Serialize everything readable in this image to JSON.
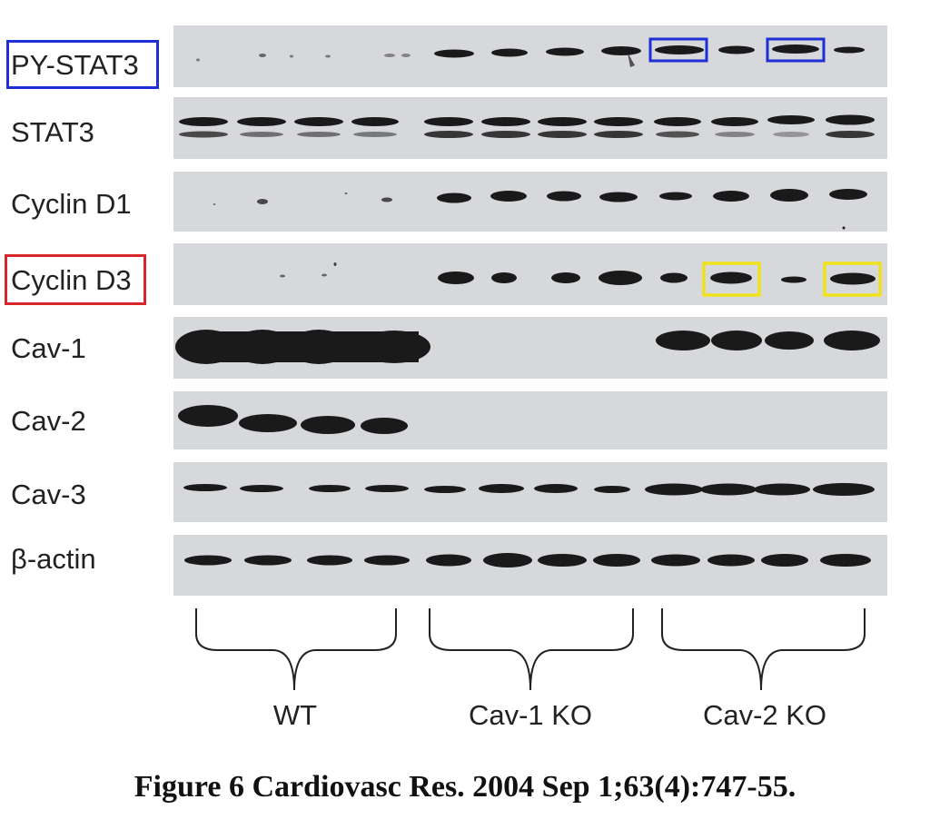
{
  "figure": {
    "caption": "Figure 6 Cardiovasc Res. 2004 Sep 1;63(4):747-55.",
    "rows": [
      {
        "label": "PY-STAT3",
        "box_color": "#1f2fd6"
      },
      {
        "label": "STAT3"
      },
      {
        "label": "Cyclin D1"
      },
      {
        "label": "Cyclin D3",
        "box_color": "#d9262b"
      },
      {
        "label": "Cav-1"
      },
      {
        "label": "Cav-2"
      },
      {
        "label": "Cav-3"
      },
      {
        "label": "β-actin"
      }
    ],
    "groups": [
      {
        "label": "WT"
      },
      {
        "label": "Cav-1 KO"
      },
      {
        "label": "Cav-2 KO"
      }
    ],
    "highlight_colors": {
      "py_stat3_lanes": "#1f2fd6",
      "cyclin_d3_lanes": "#f0e21a"
    },
    "background_color": "#d7d8db",
    "band_color": "#1a1a1a"
  }
}
